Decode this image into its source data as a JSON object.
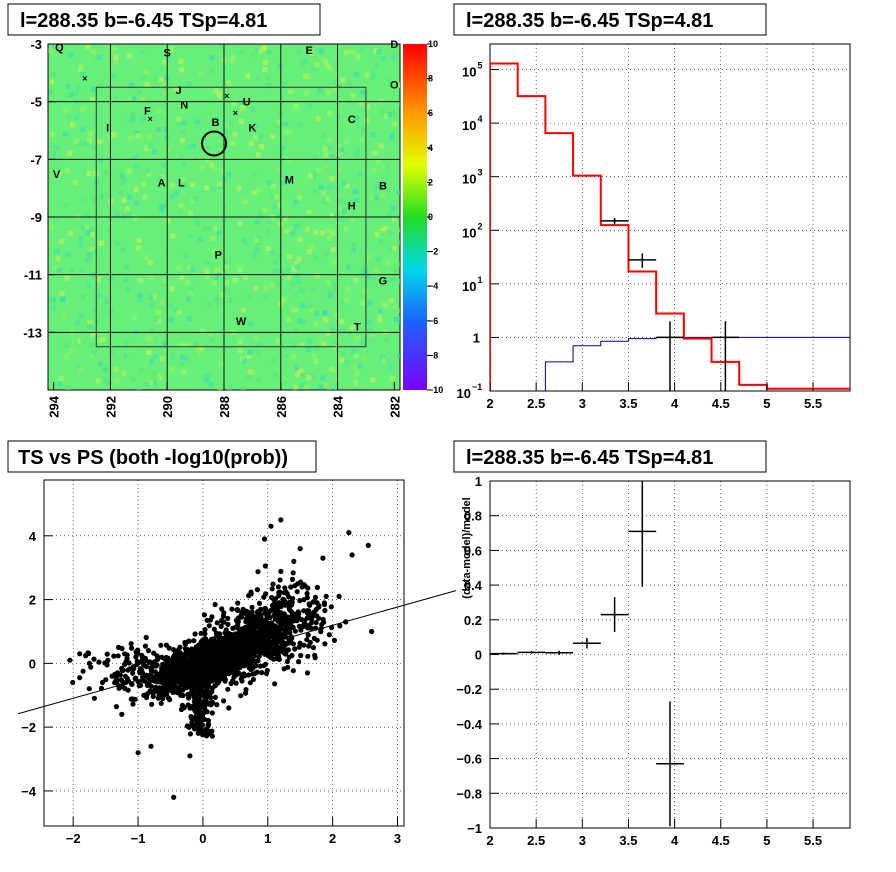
{
  "chart_data": [
    {
      "type": "heatmap",
      "title": "l=288.35 b=-6.45 TSp=4.81",
      "x_ticks": [
        "294",
        "292",
        "290",
        "288",
        "286",
        "284",
        "282"
      ],
      "y_ticks": [
        "-3",
        "-5",
        "-7",
        "-9",
        "-11",
        "-13"
      ],
      "xlim": [
        294.2,
        281.8
      ],
      "ylim": [
        -15,
        -3
      ],
      "color_scale": {
        "min": -10,
        "max": 10,
        "ticks": [
          "10",
          "8",
          "6",
          "4",
          "2",
          "0",
          "−2",
          "−4",
          "−6",
          "−8",
          "−10"
        ]
      },
      "source_circle": {
        "l": 288.35,
        "b": -6.45
      },
      "source_labels": [
        {
          "t": "Q",
          "l": 293.8,
          "b": -3.1
        },
        {
          "t": "S",
          "l": 290.0,
          "b": -3.3
        },
        {
          "t": "E",
          "l": 285.0,
          "b": -3.2
        },
        {
          "t": "D",
          "l": 282.0,
          "b": -3.0
        },
        {
          "t": "O",
          "l": 282.0,
          "b": -4.4
        },
        {
          "t": "J",
          "l": 289.6,
          "b": -4.6
        },
        {
          "t": "N",
          "l": 289.4,
          "b": -5.1
        },
        {
          "t": "U",
          "l": 287.2,
          "b": -5.0
        },
        {
          "t": "F",
          "l": 290.7,
          "b": -5.3
        },
        {
          "t": "I",
          "l": 292.1,
          "b": -5.9
        },
        {
          "t": "B",
          "l": 288.3,
          "b": -5.7
        },
        {
          "t": "K",
          "l": 287.0,
          "b": -5.9
        },
        {
          "t": "C",
          "l": 283.5,
          "b": -5.6
        },
        {
          "t": "V",
          "l": 293.9,
          "b": -7.5
        },
        {
          "t": "A",
          "l": 290.2,
          "b": -7.8
        },
        {
          "t": "L",
          "l": 289.5,
          "b": -7.8
        },
        {
          "t": "M",
          "l": 285.7,
          "b": -7.7
        },
        {
          "t": "B",
          "l": 282.4,
          "b": -7.9
        },
        {
          "t": "H",
          "l": 283.5,
          "b": -8.6
        },
        {
          "t": "P",
          "l": 288.2,
          "b": -10.3
        },
        {
          "t": "G",
          "l": 282.4,
          "b": -11.2
        },
        {
          "t": "W",
          "l": 287.4,
          "b": -12.6
        },
        {
          "t": "T",
          "l": 283.3,
          "b": -12.8
        }
      ],
      "x_markers": [
        {
          "l": 292.9,
          "b": -4.2
        },
        {
          "l": 287.9,
          "b": -4.8
        },
        {
          "l": 287.6,
          "b": -5.4
        },
        {
          "l": 290.6,
          "b": -5.6
        }
      ]
    },
    {
      "type": "line",
      "title": "l=288.35 b=-6.45 TSp=4.81",
      "yscale": "log",
      "xlim": [
        2,
        5.9
      ],
      "ylim": [
        0.1,
        300000
      ],
      "x_ticks": [
        "2",
        "2.5",
        "3",
        "3.5",
        "4",
        "4.5",
        "5",
        "5.5"
      ],
      "y_ticks": [
        {
          "base": "10",
          "exp": "5"
        },
        {
          "base": "10",
          "exp": "4"
        },
        {
          "base": "10",
          "exp": "3"
        },
        {
          "base": "10",
          "exp": "2"
        },
        {
          "base": "10",
          "exp": "1"
        },
        {
          "base": "1",
          "exp": ""
        },
        {
          "base": "10",
          "exp": "−1"
        }
      ],
      "model_red": {
        "edges": [
          2.0,
          2.3,
          2.6,
          2.9,
          3.2,
          3.5,
          3.8,
          4.1,
          4.4,
          4.7,
          5.0,
          5.9
        ],
        "values": [
          130000,
          32000,
          6500,
          1050,
          125,
          17,
          2.8,
          0.95,
          0.35,
          0.13,
          0.11
        ]
      },
      "model_blue": {
        "edges": [
          2.6,
          2.9,
          3.2,
          3.5,
          3.8,
          5.9
        ],
        "values": [
          0.35,
          0.7,
          0.85,
          0.95,
          1.0
        ]
      },
      "data_points": [
        {
          "x": 3.35,
          "y": 150,
          "xerr": 0.15,
          "ylo": 130,
          "yhi": 170
        },
        {
          "x": 3.65,
          "y": 28,
          "xerr": 0.15,
          "ylo": 20,
          "yhi": 37
        },
        {
          "x": 3.95,
          "y": 1.0,
          "xerr": 0.15,
          "ylo": 0.1,
          "yhi": 2.0
        },
        {
          "x": 4.55,
          "y": 1.0,
          "xerr": 0.15,
          "ylo": 0.1,
          "yhi": 2.0
        }
      ]
    },
    {
      "type": "scatter",
      "title": "TS vs PS (both -log10(prob))",
      "xlim": [
        -2.45,
        3.1
      ],
      "ylim": [
        -5.1,
        5.75
      ],
      "x_ticks": [
        "−2",
        "−1",
        "0",
        "1",
        "2",
        "3"
      ],
      "y_ticks": [
        "4",
        "2",
        "0",
        "−2",
        "−4"
      ],
      "fit_line": {
        "slope": 0.572,
        "intercept": 0.05
      },
      "outliers": [
        [
          2.25,
          4.1
        ],
        [
          2.55,
          3.7
        ],
        [
          2.3,
          3.4
        ],
        [
          1.85,
          3.3
        ],
        [
          2.6,
          1.0
        ],
        [
          2.2,
          1.3
        ],
        [
          1.2,
          4.5
        ],
        [
          1.05,
          4.3
        ],
        [
          -0.45,
          -4.2
        ],
        [
          -2.05,
          0.1
        ],
        [
          -1.9,
          -0.45
        ],
        [
          -1.75,
          0.0
        ],
        [
          -1.4,
          -0.4
        ],
        [
          -1.55,
          -0.6
        ],
        [
          -1.9,
          0.3
        ],
        [
          -1.0,
          -2.8
        ],
        [
          -0.8,
          -2.6
        ],
        [
          -0.2,
          -2.9
        ],
        [
          1.9,
          2.1
        ],
        [
          1.95,
          0.9
        ],
        [
          2.1,
          2.1
        ],
        [
          1.5,
          3.6
        ],
        [
          0.95,
          3.9
        ],
        [
          -1.25,
          -1.6
        ],
        [
          -1.3,
          0.5
        ]
      ]
    },
    {
      "type": "line",
      "title": "l=288.35 b=-6.45 TSp=4.81",
      "ylabel": "(data-model)/model",
      "xlim": [
        2,
        5.9
      ],
      "ylim": [
        -1,
        1
      ],
      "x_ticks": [
        "2",
        "2.5",
        "3",
        "3.5",
        "4",
        "4.5",
        "5",
        "5.5"
      ],
      "y_ticks": [
        "1",
        "0.8",
        "0.6",
        "0.4",
        "0.2",
        "0",
        "−0.2",
        "−0.4",
        "−0.6",
        "−0.8",
        "−1"
      ],
      "points": [
        {
          "x": 2.15,
          "y": 0.005,
          "xerr": 0.15,
          "yerr": 0.006
        },
        {
          "x": 2.45,
          "y": 0.012,
          "xerr": 0.15,
          "yerr": 0.008
        },
        {
          "x": 2.75,
          "y": 0.01,
          "xerr": 0.15,
          "yerr": 0.012
        },
        {
          "x": 3.05,
          "y": 0.065,
          "xerr": 0.15,
          "yerr": 0.03
        },
        {
          "x": 3.35,
          "y": 0.23,
          "xerr": 0.15,
          "yerr": 0.1
        },
        {
          "x": 3.65,
          "y": 0.71,
          "xerr": 0.15,
          "yerr": 0.32
        },
        {
          "x": 3.95,
          "y": -0.63,
          "xerr": 0.15,
          "yerr": 0.36
        }
      ]
    }
  ]
}
